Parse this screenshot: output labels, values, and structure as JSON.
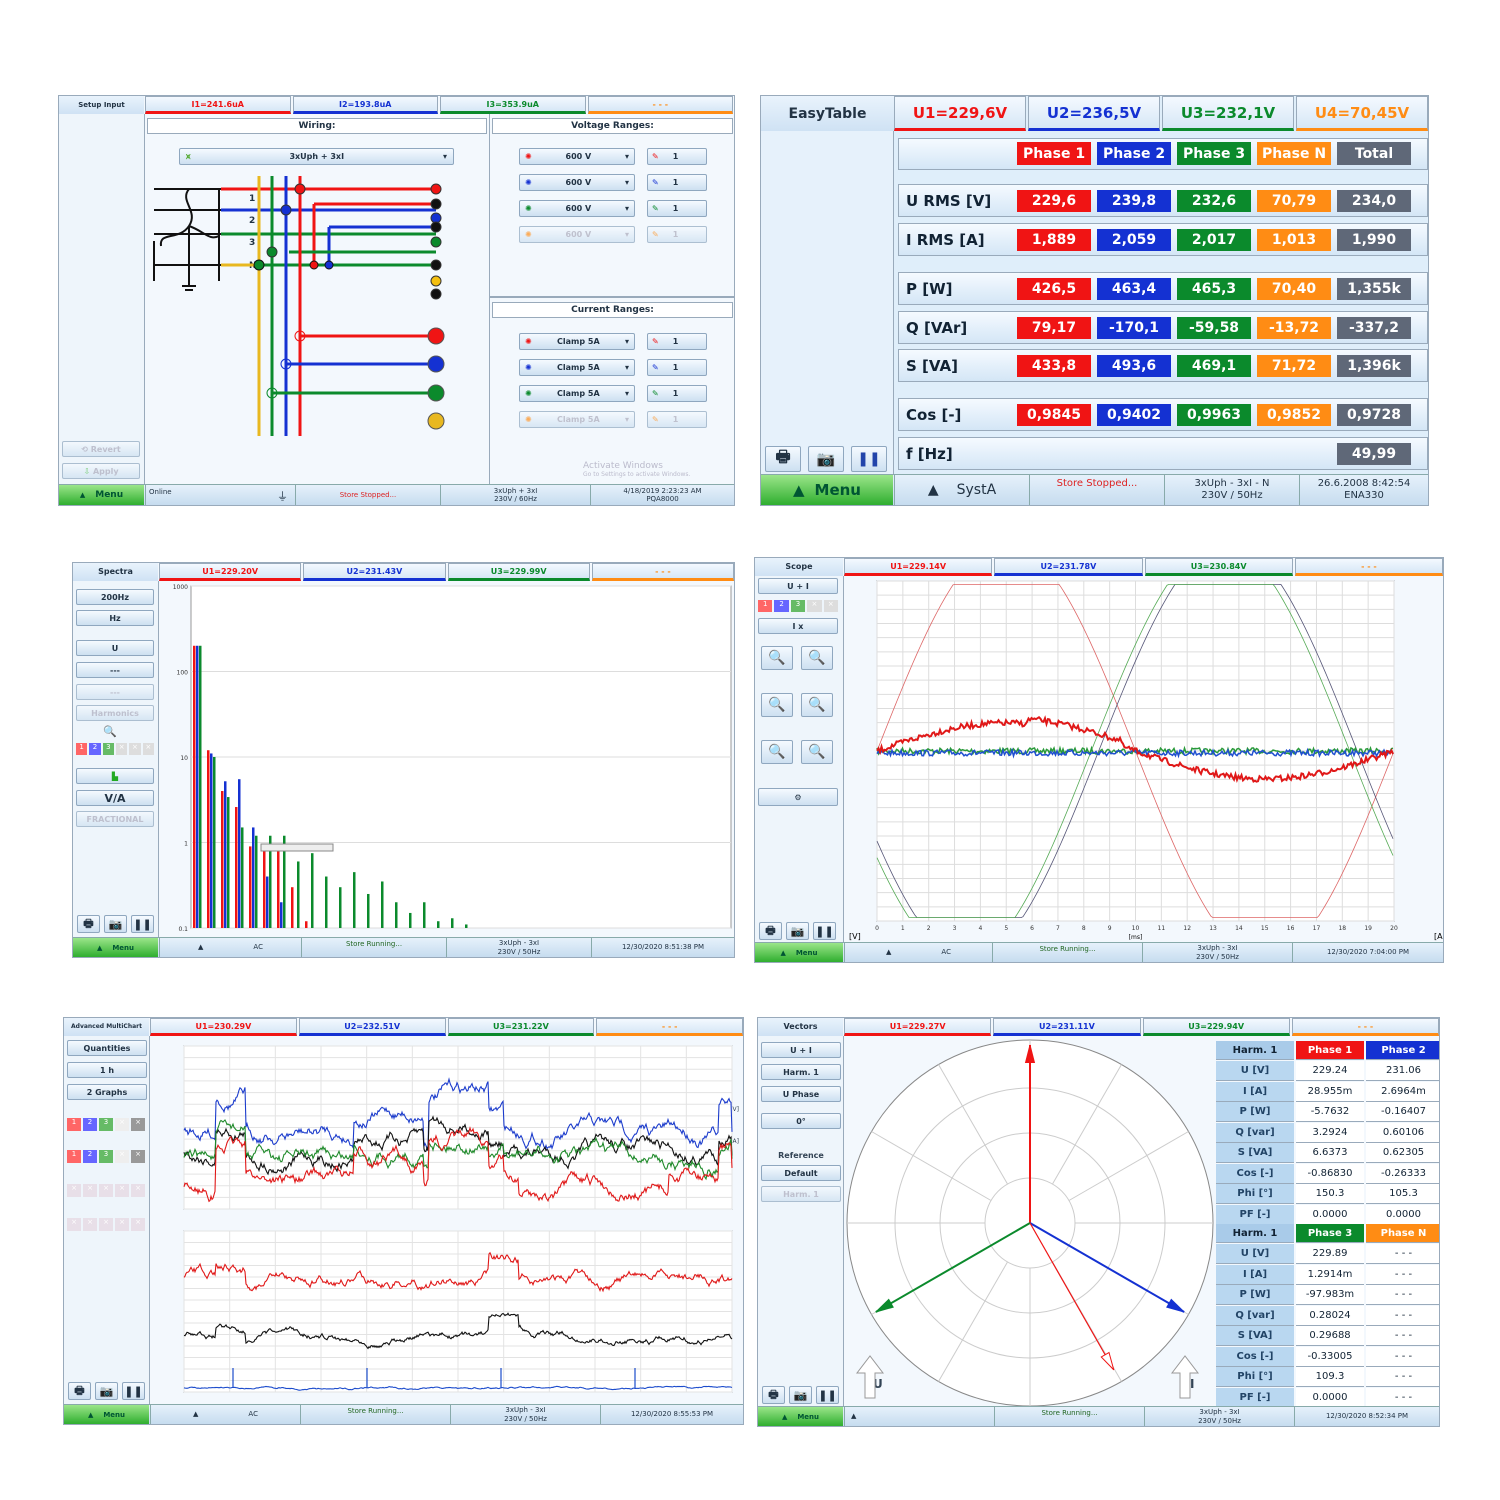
{
  "colors": {
    "phase1": "#f01414",
    "phase2": "#1431d2",
    "phase3": "#0b8a2c",
    "phaseN": "#ff8c14",
    "total": "#5f6878",
    "menu": "#2fae2f"
  },
  "setup": {
    "mode": "Setup Input",
    "tabs": [
      "I1=241.6uA",
      "I2=193.8uA",
      "I3=353.9uA",
      "- - -"
    ],
    "wiring_title": "Wiring:",
    "wiring_select": "3xUph + 3xI",
    "terminal_labels": [
      "1",
      "2",
      "3",
      "N"
    ],
    "voltage_title": "Voltage Ranges:",
    "voltage_ranges": [
      {
        "range": "600 V",
        "factor": "1"
      },
      {
        "range": "600 V",
        "factor": "1"
      },
      {
        "range": "600 V",
        "factor": "1"
      },
      {
        "range": "600 V",
        "factor": "1",
        "disabled": true
      }
    ],
    "current_title": "Current Ranges:",
    "current_ranges": [
      {
        "range": "Clamp 5A",
        "factor": "1"
      },
      {
        "range": "Clamp 5A",
        "factor": "1"
      },
      {
        "range": "Clamp 5A",
        "factor": "1"
      },
      {
        "range": "Clamp 5A",
        "factor": "1",
        "disabled": true
      }
    ],
    "revert": "Revert",
    "apply": "Apply",
    "menu": "Menu",
    "watermark": [
      "Activate Windows",
      "Go to Settings to activate Windows."
    ],
    "footer": {
      "status": "Online",
      "store": "Store Stopped...",
      "conn1": "3xUph + 3xI",
      "conn2": "230V / 60Hz",
      "date": "4/18/2019 2:23:23 AM",
      "device": "PQA8000"
    }
  },
  "easytable": {
    "mode": "EasyTable",
    "tabs": [
      "U1=229,6V",
      "U2=236,5V",
      "U3=232,1V",
      "U4=70,45V"
    ],
    "headers": [
      "Phase 1",
      "Phase 2",
      "Phase 3",
      "Phase N",
      "Total"
    ],
    "rows": [
      {
        "label": "U RMS [V]",
        "values": [
          "229,6",
          "239,8",
          "232,6",
          "70,79",
          "234,0"
        ]
      },
      {
        "label": "I RMS [A]",
        "values": [
          "1,889",
          "2,059",
          "2,017",
          "1,013",
          "1,990"
        ]
      },
      {
        "label": "P [W]",
        "values": [
          "426,5",
          "463,4",
          "465,3",
          "70,40",
          "1,355k"
        ]
      },
      {
        "label": "Q [VAr]",
        "values": [
          "79,17",
          "-170,1",
          "-59,58",
          "-13,72",
          "-337,2"
        ]
      },
      {
        "label": "S [VA]",
        "values": [
          "433,8",
          "493,6",
          "469,1",
          "71,72",
          "1,396k"
        ]
      },
      {
        "label": "Cos [-]",
        "values": [
          "0,9845",
          "0,9402",
          "0,9963",
          "0,9852",
          "0,9728"
        ]
      },
      {
        "label": "f [Hz]",
        "values": [
          "",
          "",
          "",
          "",
          "49,99"
        ]
      }
    ],
    "menu": "Menu",
    "footer": {
      "system": "SystA",
      "store": "Store Stopped...",
      "conn1": "3xUph - 3xI - N",
      "conn2": "230V / 50Hz",
      "date": "26.6.2008 8:42:54",
      "device": "ENA330"
    }
  },
  "spectra": {
    "mode": "Spectra",
    "tabs": [
      "U1=229.20V",
      "U2=231.43V",
      "U3=229.99V",
      "- - -"
    ],
    "controls": [
      "200Hz",
      "Hz",
      "U",
      "---",
      "---",
      "Harmonics",
      "V/A",
      "FRACTIONAL"
    ],
    "y_ticks": [
      "1000",
      "100",
      "10",
      "1",
      "0.1"
    ],
    "menu": "Menu",
    "footer": {
      "mode": "AC",
      "store": "Store Running...",
      "conn1": "3xUph - 3xI",
      "conn2": "230V / 50Hz",
      "date": "12/30/2020 8:51:38 PM"
    }
  },
  "chart_data": {
    "type": "bar",
    "yscale": "log",
    "ylim": [
      0.1,
      1000
    ],
    "series": [
      {
        "color": "#f01414",
        "values": [
          200,
          12,
          4,
          2.6,
          0.9,
          0.9,
          0.8,
          0.3,
          0.12
        ]
      },
      {
        "color": "#1431d2",
        "values": [
          200,
          11,
          5.2,
          5.5,
          1.5,
          0.4,
          0.2,
          0.1,
          0.1
        ]
      },
      {
        "color": "#0b8a2c",
        "values": [
          200,
          10,
          3.4,
          1.5,
          1.2,
          1.2,
          1.2,
          0.6,
          0.75,
          0.4,
          0.3,
          0.45,
          0.25,
          0.35,
          0.2,
          0.15,
          0.2,
          0.12,
          0.13,
          0.11
        ]
      }
    ]
  },
  "scope": {
    "mode": "Scope",
    "tabs": [
      "U1=229.14V",
      "U2=231.78V",
      "U3=230.84V",
      "- - -"
    ],
    "controls": [
      "U + I",
      "I x"
    ],
    "x_ticks": [
      "0",
      "1",
      "2",
      "3",
      "4",
      "5",
      "6",
      "7",
      "8",
      "9",
      "10",
      "11",
      "12",
      "13",
      "14",
      "15",
      "16",
      "17",
      "18",
      "19",
      "20"
    ],
    "x_unit": "[ms]",
    "left_unit": "[V]",
    "right_unit": "[A]",
    "menu": "Menu",
    "footer": {
      "mode": "AC",
      "store": "Store Running...",
      "conn1": "3xUph - 3xI",
      "conn2": "230V / 50Hz",
      "date": "12/30/2020 7:04:00 PM"
    }
  },
  "multichart": {
    "mode": "Advanced MultiChart",
    "tabs": [
      "U1=230.29V",
      "U2=232.51V",
      "U3=231.22V",
      "- - -"
    ],
    "controls": [
      "Quantities",
      "1 h",
      "2 Graphs",
      "U RMS [V]",
      "I RMS [A]"
    ],
    "menu": "Menu",
    "footer": {
      "mode": "AC",
      "store": "Store Running...",
      "conn1": "3xUph - 3xI",
      "conn2": "230V / 50Hz",
      "date": "12/30/2020 8:55:53 PM"
    }
  },
  "vectors": {
    "mode": "Vectors",
    "tabs": [
      "U1=229.27V",
      "U2=231.11V",
      "U3=229.94V",
      "- - -"
    ],
    "controls": [
      "U + I",
      "Harm. 1",
      "U Phase",
      "0°",
      "Reference",
      "Default",
      "Harm. 1"
    ],
    "axis_u": "U",
    "axis_i": "I",
    "phasors": [
      {
        "color": "#f01414",
        "angle_deg": 90,
        "magnitude": 1.0,
        "kind": "U"
      },
      {
        "color": "#1431d2",
        "angle_deg": -30,
        "magnitude": 1.0,
        "kind": "U"
      },
      {
        "color": "#0b8a2c",
        "angle_deg": 210,
        "magnitude": 1.0,
        "kind": "U"
      },
      {
        "color": "#f01414",
        "angle_deg": -60.3,
        "magnitude": 0.95,
        "kind": "I"
      }
    ],
    "table1": {
      "header": [
        "Harm. 1",
        "Phase 1",
        "Phase 2"
      ],
      "rows": [
        [
          "U [V]",
          "229.24",
          "231.06"
        ],
        [
          "I [A]",
          "28.955m",
          "2.6964m"
        ],
        [
          "P [W]",
          "-5.7632",
          "-0.16407"
        ],
        [
          "Q [var]",
          "3.2924",
          "0.60106"
        ],
        [
          "S [VA]",
          "6.6373",
          "0.62305"
        ],
        [
          "Cos [-]",
          "-0.86830",
          "-0.26333"
        ],
        [
          "Phi [°]",
          "150.3",
          "105.3"
        ],
        [
          "PF [-]",
          "0.0000",
          "0.0000"
        ]
      ]
    },
    "table2": {
      "header": [
        "Harm. 1",
        "Phase 3",
        "Phase N"
      ],
      "rows": [
        [
          "U [V]",
          "229.89",
          "- - -"
        ],
        [
          "I [A]",
          "1.2914m",
          "- - -"
        ],
        [
          "P [W]",
          "-97.983m",
          "- - -"
        ],
        [
          "Q [var]",
          "0.28024",
          "- - -"
        ],
        [
          "S [VA]",
          "0.29688",
          "- - -"
        ],
        [
          "Cos [-]",
          "-0.33005",
          "- - -"
        ],
        [
          "Phi [°]",
          "109.3",
          "- - -"
        ],
        [
          "PF [-]",
          "0.0000",
          "- - -"
        ]
      ]
    },
    "menu": "Menu",
    "footer": {
      "store": "Store Running...",
      "conn1": "3xUph - 3xI",
      "conn2": "230V / 50Hz",
      "date": "12/30/2020 8:52:34 PM"
    }
  }
}
